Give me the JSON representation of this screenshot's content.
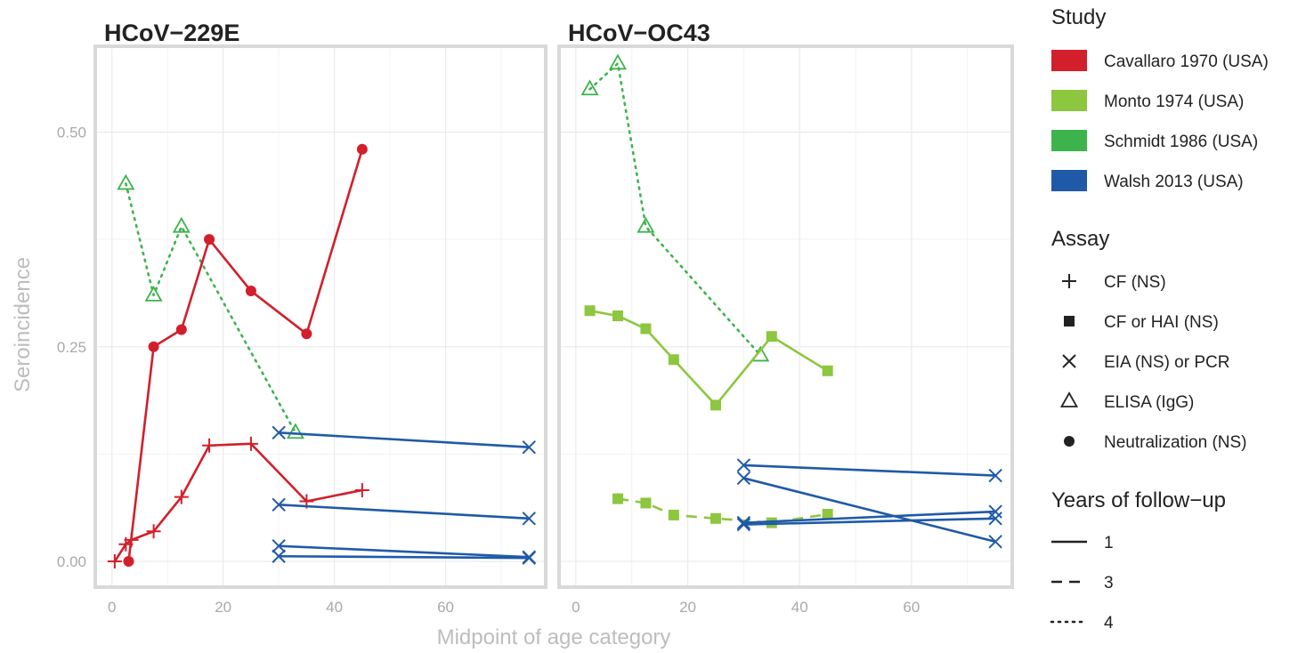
{
  "chart_data": {
    "type": "line",
    "xlabel": "Midpoint of age category",
    "ylabel": "Seroincidence",
    "xlim": [
      -3,
      78
    ],
    "ylim": [
      -0.03,
      0.6
    ],
    "x_ticks": [
      0,
      20,
      40,
      60
    ],
    "y_ticks": [
      0.0,
      0.25,
      0.5
    ],
    "x_tick_labels": [
      "0",
      "20",
      "40",
      "60"
    ],
    "y_tick_labels": [
      "0.00",
      "0.25",
      "0.50"
    ],
    "grid": true,
    "legend_position": "right",
    "study_colors": {
      "Cavallaro 1970 (USA)": "#d21f2b",
      "Monto 1974 (USA)": "#8dc63f",
      "Schmidt 1986 (USA)": "#3cb44b",
      "Walsh 2013 (USA)": "#1f5aa8"
    },
    "legend": {
      "study_title": "Study",
      "studies": [
        "Cavallaro 1970 (USA)",
        "Monto 1974 (USA)",
        "Schmidt 1986 (USA)",
        "Walsh 2013 (USA)"
      ],
      "assay_title": "Assay",
      "assays": [
        "CF (NS)",
        "CF or HAI (NS)",
        "EIA (NS) or PCR",
        "ELISA (IgG)",
        "Neutralization (NS)"
      ],
      "assay_shapes": [
        "plus",
        "square",
        "x",
        "triangle",
        "circle"
      ],
      "followup_title": "Years of follow−up",
      "followups": [
        "1",
        "3",
        "4"
      ],
      "followup_linetypes": [
        "solid",
        "dashed",
        "dotted"
      ]
    },
    "panels": [
      {
        "title": "HCoV−229E",
        "series": [
          {
            "study": "Schmidt 1986 (USA)",
            "assay": "ELISA (IgG)",
            "followup": "4",
            "x": [
              2.5,
              7.5,
              12.5,
              33
            ],
            "y": [
              0.44,
              0.31,
              0.39,
              0.15
            ]
          },
          {
            "study": "Cavallaro 1970 (USA)",
            "assay": "Neutralization (NS)",
            "followup": "1",
            "x": [
              3,
              7.5,
              12.5,
              17.5,
              25,
              35,
              45
            ],
            "y": [
              0.0,
              0.25,
              0.27,
              0.375,
              0.315,
              0.265,
              0.48
            ]
          },
          {
            "study": "Cavallaro 1970 (USA)",
            "assay": "CF (NS)",
            "followup": "1",
            "x": [
              0.5,
              2.5,
              3.5,
              7.5,
              12.5,
              17.5,
              25,
              35,
              45
            ],
            "y": [
              0.0,
              0.02,
              0.025,
              0.035,
              0.075,
              0.135,
              0.137,
              0.07,
              0.083
            ]
          },
          {
            "study": "Walsh 2013 (USA)",
            "assay": "EIA (NS) or PCR",
            "followup": "1",
            "x": [
              30,
              75
            ],
            "y": [
              0.15,
              0.133
            ]
          },
          {
            "study": "Walsh 2013 (USA)",
            "assay": "EIA (NS) or PCR",
            "followup": "1",
            "x": [
              30,
              75
            ],
            "y": [
              0.066,
              0.05
            ]
          },
          {
            "study": "Walsh 2013 (USA)",
            "assay": "EIA (NS) or PCR",
            "followup": "1",
            "x": [
              30,
              75
            ],
            "y": [
              0.018,
              0.005
            ]
          },
          {
            "study": "Walsh 2013 (USA)",
            "assay": "EIA (NS) or PCR",
            "followup": "1",
            "x": [
              30,
              75
            ],
            "y": [
              0.006,
              0.004
            ]
          }
        ]
      },
      {
        "title": "HCoV−OC43",
        "series": [
          {
            "study": "Schmidt 1986 (USA)",
            "assay": "ELISA (IgG)",
            "followup": "4",
            "x": [
              2.5,
              7.5,
              12.5,
              33
            ],
            "y": [
              0.55,
              0.58,
              0.39,
              0.24
            ]
          },
          {
            "study": "Monto 1974 (USA)",
            "assay": "CF or HAI (NS)",
            "followup": "1",
            "x": [
              2.5,
              7.5,
              12.5,
              17.5,
              25,
              35,
              45
            ],
            "y": [
              0.292,
              0.286,
              0.271,
              0.235,
              0.182,
              0.262,
              0.222
            ]
          },
          {
            "study": "Monto 1974 (USA)",
            "assay": "CF or HAI (NS)",
            "followup": "3",
            "x": [
              7.5,
              12.5,
              17.5,
              25,
              35,
              45
            ],
            "y": [
              0.073,
              0.068,
              0.054,
              0.05,
              0.045,
              0.055
            ]
          },
          {
            "study": "Walsh 2013 (USA)",
            "assay": "EIA (NS) or PCR",
            "followup": "1",
            "x": [
              30,
              75
            ],
            "y": [
              0.112,
              0.1
            ]
          },
          {
            "study": "Walsh 2013 (USA)",
            "assay": "EIA (NS) or PCR",
            "followup": "1",
            "x": [
              30,
              75
            ],
            "y": [
              0.097,
              0.023
            ]
          },
          {
            "study": "Walsh 2013 (USA)",
            "assay": "EIA (NS) or PCR",
            "followup": "1",
            "x": [
              30,
              75
            ],
            "y": [
              0.045,
              0.058
            ]
          },
          {
            "study": "Walsh 2013 (USA)",
            "assay": "EIA (NS) or PCR",
            "followup": "1",
            "x": [
              30,
              75
            ],
            "y": [
              0.043,
              0.05
            ]
          }
        ]
      }
    ]
  }
}
